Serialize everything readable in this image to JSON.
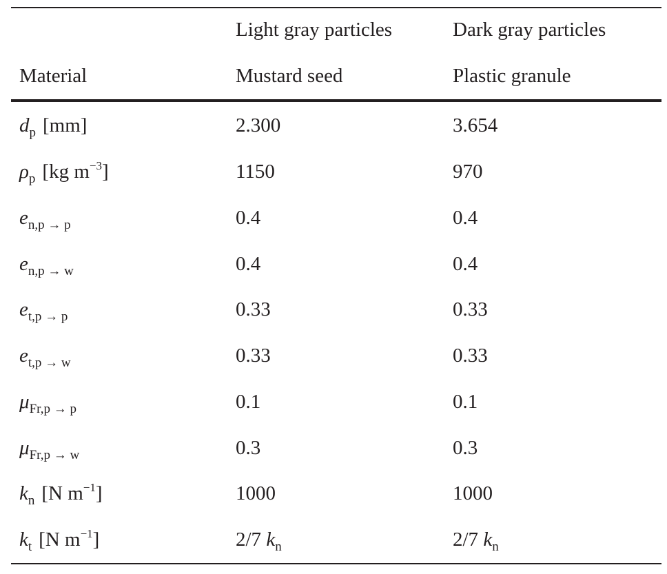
{
  "header": {
    "row1": {
      "col2": "Light gray particles",
      "col3": "Dark gray particles"
    },
    "row2": {
      "col1": "Material",
      "col2": "Mustard seed",
      "col3": "Plastic granule"
    }
  },
  "rows": [
    {
      "symbol": "d",
      "sub": "p",
      "unit_pre": "[mm]",
      "unit_sup": "",
      "unit_post": "",
      "light": "2.300",
      "dark": "3.654"
    },
    {
      "symbol": "ρ",
      "sub": "p",
      "unit_pre": "[kg m",
      "unit_sup": "−3",
      "unit_post": "]",
      "light": "1150",
      "dark": "970"
    },
    {
      "symbol": "e",
      "sub": "n,p → p",
      "unit_pre": "",
      "unit_sup": "",
      "unit_post": "",
      "light": "0.4",
      "dark": "0.4"
    },
    {
      "symbol": "e",
      "sub": "n,p → w",
      "unit_pre": "",
      "unit_sup": "",
      "unit_post": "",
      "light": "0.4",
      "dark": "0.4"
    },
    {
      "symbol": "e",
      "sub": "t,p → p",
      "unit_pre": "",
      "unit_sup": "",
      "unit_post": "",
      "light": "0.33",
      "dark": "0.33"
    },
    {
      "symbol": "e",
      "sub": "t,p → w",
      "unit_pre": "",
      "unit_sup": "",
      "unit_post": "",
      "light": "0.33",
      "dark": "0.33"
    },
    {
      "symbol": "μ",
      "sub": "Fr,p → p",
      "unit_pre": "",
      "unit_sup": "",
      "unit_post": "",
      "light": "0.1",
      "dark": "0.1"
    },
    {
      "symbol": "μ",
      "sub": "Fr,p → w",
      "unit_pre": "",
      "unit_sup": "",
      "unit_post": "",
      "light": "0.3",
      "dark": "0.3"
    },
    {
      "symbol": "k",
      "sub": "n",
      "unit_pre": "[N m",
      "unit_sup": "−1",
      "unit_post": "]",
      "light": "1000",
      "dark": "1000"
    },
    {
      "symbol": "k",
      "sub": "t",
      "unit_pre": "[N m",
      "unit_sup": "−1",
      "unit_post": "]",
      "light": "2/7 k_n",
      "dark": "2/7 k_n"
    }
  ],
  "kt_value": {
    "prefix": "2/7",
    "symbol": "k",
    "sub": "n"
  }
}
